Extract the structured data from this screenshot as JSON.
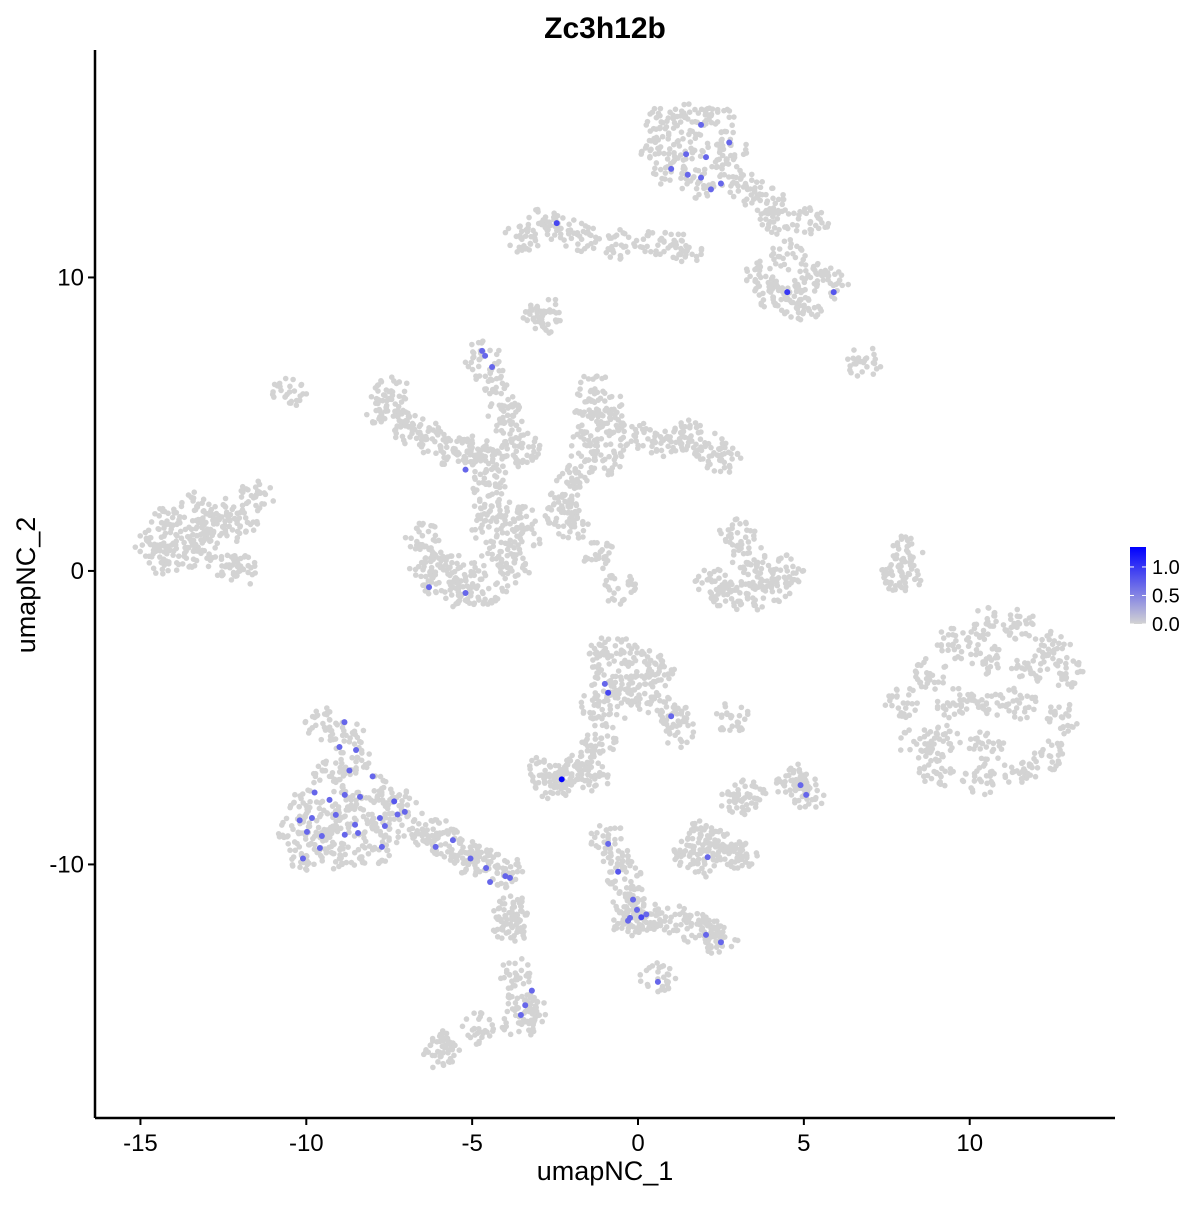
{
  "chart_data": {
    "type": "scatter",
    "title": "Zc3h12b",
    "xlabel": "umapNC_1",
    "ylabel": "umapNC_2",
    "xlim": [
      -16.37,
      14.38
    ],
    "ylim": [
      -18.64,
      17.75
    ],
    "xticks": [
      -15,
      -10,
      -5,
      0,
      5,
      10
    ],
    "yticks": [
      -10,
      0,
      10
    ],
    "grid": false,
    "legend": {
      "position": "right",
      "type": "colorbar",
      "ticks": [
        0.0,
        0.5,
        1.0
      ],
      "tick_labels": [
        "0.0",
        "0.5",
        "1.0"
      ],
      "range": [
        0,
        1.35
      ]
    },
    "colors": {
      "low": "#d3d3d3",
      "high": "#0000ff"
    },
    "unexpressed_cells_value": 0,
    "unexpressed_cells": [
      [
        -14.7,
        0.9
      ],
      [
        -14.2,
        1.7
      ],
      [
        -13.3,
        2.2
      ],
      [
        -12.4,
        2.0
      ],
      [
        -12.0,
        1.5
      ],
      [
        -11.5,
        2.6
      ],
      [
        -14.3,
        0.4
      ],
      [
        -13.4,
        0.4
      ],
      [
        -12.4,
        0.2
      ],
      [
        -12.0,
        0
      ],
      [
        -13.3,
        1.2
      ],
      [
        -13.9,
        1.2
      ],
      [
        -12.8,
        1.3
      ],
      [
        -7.8,
        5.5
      ],
      [
        -7.4,
        6.1
      ],
      [
        -7.0,
        5.0
      ],
      [
        -6.2,
        4.5
      ],
      [
        -5.5,
        4.0
      ],
      [
        -4.7,
        3.8
      ],
      [
        -4.0,
        3.9
      ],
      [
        -3.5,
        4.2
      ],
      [
        -6.8,
        4.8
      ],
      [
        -5.0,
        4.2
      ],
      [
        -4.7,
        7.3
      ],
      [
        -4.4,
        6.5
      ],
      [
        -4.1,
        5.5
      ],
      [
        -3.8,
        4.8
      ],
      [
        -4.5,
        3
      ],
      [
        -4.4,
        2.2
      ],
      [
        -4.5,
        1.5
      ],
      [
        -6.5,
        1.2
      ],
      [
        -6.4,
        0.3
      ],
      [
        -6.0,
        -0.4
      ],
      [
        -5.3,
        -0.8
      ],
      [
        -4.5,
        -0.6
      ],
      [
        -3.8,
        0
      ],
      [
        -3.5,
        1.0
      ],
      [
        -3.6,
        1.8
      ],
      [
        -5.2,
        -0.2
      ],
      [
        -4.2,
        0.5
      ],
      [
        -5.8,
        0.2
      ],
      [
        -1.3,
        6.2
      ],
      [
        -1.4,
        5.2
      ],
      [
        -1.6,
        4.3
      ],
      [
        -1.0,
        3.8
      ],
      [
        -0.5,
        4.5
      ],
      [
        0.3,
        4.5
      ],
      [
        1.0,
        4.4
      ],
      [
        1.6,
        4.6
      ],
      [
        2.2,
        4.2
      ],
      [
        2.6,
        3.7
      ],
      [
        -0.8,
        5.5
      ],
      [
        -1.9,
        3.4
      ],
      [
        -2.2,
        2.6
      ],
      [
        -2.3,
        2.0
      ],
      [
        -2.0,
        1.5
      ],
      [
        -1.2,
        0.5
      ],
      [
        -0.6,
        -0.6
      ],
      [
        3.0,
        1.3
      ],
      [
        3.3,
        0.6
      ],
      [
        3.6,
        -0.2
      ],
      [
        4.2,
        -0.5
      ],
      [
        4.5,
        0
      ],
      [
        2.7,
        -0.8
      ],
      [
        3.3,
        -0.9
      ],
      [
        2.2,
        -0.3
      ],
      [
        7.9,
        0
      ],
      [
        8.1,
        0.7
      ],
      [
        8.0,
        -0.3
      ],
      [
        8.0,
        -4.5
      ],
      [
        8.8,
        -3.5
      ],
      [
        9.5,
        -2.5
      ],
      [
        10.5,
        -1.8
      ],
      [
        11.5,
        -1.8
      ],
      [
        12.5,
        -2.5
      ],
      [
        12.9,
        -3.5
      ],
      [
        12.8,
        -5
      ],
      [
        12.4,
        -6.3
      ],
      [
        11.5,
        -6.9
      ],
      [
        10.3,
        -7.1
      ],
      [
        9.0,
        -6.9
      ],
      [
        8.4,
        -5.9
      ],
      [
        10.5,
        -4.5
      ],
      [
        9.5,
        -4.5
      ],
      [
        11.5,
        -4.5
      ],
      [
        10.5,
        -3
      ],
      [
        10.5,
        -6
      ],
      [
        11.8,
        -3.3
      ],
      [
        9.2,
        -5.8
      ],
      [
        0.7,
        15.3
      ],
      [
        1.5,
        15.4
      ],
      [
        2.4,
        15.3
      ],
      [
        2.8,
        14.5
      ],
      [
        2.6,
        13.5
      ],
      [
        1.8,
        13.2
      ],
      [
        1.0,
        13.6
      ],
      [
        0.6,
        14.4
      ],
      [
        1.6,
        14.4
      ],
      [
        3.3,
        13.0
      ],
      [
        3.9,
        12.6
      ],
      [
        4.2,
        12.0
      ],
      [
        5.2,
        11.9
      ],
      [
        4.5,
        10.8
      ],
      [
        5.2,
        10.0
      ],
      [
        5.8,
        9.8
      ],
      [
        4.5,
        9.3
      ],
      [
        5.0,
        9.0
      ],
      [
        4.0,
        9.5
      ],
      [
        3.7,
        10.0
      ],
      [
        -2.9,
        11.8
      ],
      [
        -2.4,
        11.7
      ],
      [
        -1.7,
        11.3
      ],
      [
        -0.5,
        11.1
      ],
      [
        0.6,
        11.1
      ],
      [
        1.5,
        11.0
      ],
      [
        -3.5,
        11.3
      ],
      [
        -2.8,
        8.8
      ],
      [
        -3.0,
        8.5
      ],
      [
        6.8,
        7.1
      ],
      [
        -10.5,
        6.1
      ],
      [
        -9.5,
        -5.2
      ],
      [
        -8.8,
        -5.6
      ],
      [
        -8.5,
        -6.5
      ],
      [
        -9.3,
        -7.0
      ],
      [
        -10.0,
        -8.0
      ],
      [
        -10.4,
        -8.8
      ],
      [
        -10.0,
        -9.7
      ],
      [
        -9.0,
        -9.8
      ],
      [
        -8.0,
        -9.5
      ],
      [
        -7.5,
        -8.8
      ],
      [
        -7.2,
        -8.0
      ],
      [
        -7.8,
        -7.5
      ],
      [
        -8.5,
        -8.5
      ],
      [
        -9.2,
        -8.7
      ],
      [
        -8.8,
        -7.8
      ],
      [
        -9.5,
        -9.2
      ],
      [
        -6.5,
        -8.8
      ],
      [
        -5.8,
        -9.3
      ],
      [
        -5.2,
        -9.6
      ],
      [
        -4.5,
        -10.0
      ],
      [
        -3.9,
        -10.3
      ],
      [
        -6.0,
        -9.0
      ],
      [
        -5.0,
        -9.9
      ],
      [
        -3.8,
        -11.8
      ],
      [
        -3.7,
        -13.7
      ],
      [
        -3.5,
        -14.5
      ],
      [
        -3.3,
        -15
      ],
      [
        -3.6,
        -15.4
      ],
      [
        -6,
        -16.4
      ],
      [
        -4.8,
        -15.6
      ],
      [
        -5.9,
        -16.2
      ],
      [
        -3.8,
        -11.6
      ],
      [
        -3.9,
        -12.3
      ],
      [
        -1.1,
        -2.8
      ],
      [
        -0.5,
        -2.7
      ],
      [
        0.2,
        -3.1
      ],
      [
        0.6,
        -3.5
      ],
      [
        -0.9,
        -3.8
      ],
      [
        -0.3,
        -4.0
      ],
      [
        0.4,
        -4.3
      ],
      [
        1.0,
        -4.9
      ],
      [
        1.2,
        -5.5
      ],
      [
        -1.2,
        -4.6
      ],
      [
        -0.5,
        -4.5
      ],
      [
        -2.8,
        -6.8
      ],
      [
        -2.3,
        -6.9
      ],
      [
        -2.0,
        -7.0
      ],
      [
        -2.6,
        -7.3
      ],
      [
        -1.7,
        -6.3
      ],
      [
        -1.1,
        -5.7
      ],
      [
        -1.4,
        -7.0
      ],
      [
        -0.9,
        -9.1
      ],
      [
        -0.6,
        -9.8
      ],
      [
        -0.4,
        -10.5
      ],
      [
        -0.2,
        -11.3
      ],
      [
        0,
        -11.8
      ],
      [
        -0.3,
        -12.0
      ],
      [
        0.3,
        -11.7
      ],
      [
        1.0,
        -11.8
      ],
      [
        1.6,
        -12.1
      ],
      [
        2.1,
        -12.4
      ],
      [
        2.5,
        -12.6
      ],
      [
        0.6,
        -13.9
      ],
      [
        1.6,
        -9.6
      ],
      [
        2.2,
        -9.3
      ],
      [
        2.8,
        -9.5
      ],
      [
        3.1,
        -9.7
      ],
      [
        2.0,
        -9.9
      ],
      [
        1.9,
        -9.0
      ],
      [
        4.9,
        -7.1
      ],
      [
        5.1,
        -7.6
      ],
      [
        4.7,
        -7.3
      ],
      [
        3.3,
        -7.6
      ],
      [
        3.0,
        -7.8
      ],
      [
        2.8,
        -5.0
      ]
    ],
    "expressed_cells": [
      {
        "x": 1.9,
        "y": 15.2,
        "v": 0.7
      },
      {
        "x": 1.45,
        "y": 14.2,
        "v": 0.7
      },
      {
        "x": 2.05,
        "y": 14.1,
        "v": 0.7
      },
      {
        "x": 2.75,
        "y": 14.6,
        "v": 0.7
      },
      {
        "x": 1.0,
        "y": 13.7,
        "v": 0.7
      },
      {
        "x": 1.5,
        "y": 13.5,
        "v": 0.7
      },
      {
        "x": 1.9,
        "y": 13.4,
        "v": 0.7
      },
      {
        "x": 2.2,
        "y": 13.0,
        "v": 0.7
      },
      {
        "x": 2.5,
        "y": 13.2,
        "v": 0.7
      },
      {
        "x": -2.45,
        "y": 11.85,
        "v": 0.9
      },
      {
        "x": 4.5,
        "y": 9.5,
        "v": 1.0
      },
      {
        "x": 5.9,
        "y": 9.5,
        "v": 0.8
      },
      {
        "x": -4.7,
        "y": 7.5,
        "v": 0.7
      },
      {
        "x": -4.61,
        "y": 7.33,
        "v": 0.7
      },
      {
        "x": -4.4,
        "y": 6.95,
        "v": 0.7
      },
      {
        "x": -5.2,
        "y": 3.45,
        "v": 0.7
      },
      {
        "x": -6.3,
        "y": -0.55,
        "v": 0.7
      },
      {
        "x": -5.2,
        "y": -0.75,
        "v": 0.7
      },
      {
        "x": -1.0,
        "y": -3.85,
        "v": 0.7
      },
      {
        "x": -0.9,
        "y": -4.15,
        "v": 0.9
      },
      {
        "x": 1.0,
        "y": -4.95,
        "v": 0.7
      },
      {
        "x": -8.85,
        "y": -5.15,
        "v": 0.7
      },
      {
        "x": -9.0,
        "y": -6.0,
        "v": 0.7
      },
      {
        "x": -8.5,
        "y": -6.1,
        "v": 0.7
      },
      {
        "x": -8.7,
        "y": -6.8,
        "v": 0.7
      },
      {
        "x": -8.0,
        "y": -7.0,
        "v": 0.7
      },
      {
        "x": -9.75,
        "y": -7.55,
        "v": 0.7
      },
      {
        "x": -9.3,
        "y": -7.8,
        "v": 0.7
      },
      {
        "x": -8.84,
        "y": -7.63,
        "v": 0.7
      },
      {
        "x": -8.38,
        "y": -7.7,
        "v": 0.7
      },
      {
        "x": -7.35,
        "y": -7.85,
        "v": 0.8
      },
      {
        "x": -10.2,
        "y": -8.5,
        "v": 0.7
      },
      {
        "x": -9.83,
        "y": -8.42,
        "v": 0.7
      },
      {
        "x": -9.11,
        "y": -8.31,
        "v": 0.7
      },
      {
        "x": -8.53,
        "y": -8.65,
        "v": 0.7
      },
      {
        "x": -7.78,
        "y": -8.42,
        "v": 0.7
      },
      {
        "x": -9.98,
        "y": -8.89,
        "v": 0.7
      },
      {
        "x": -9.53,
        "y": -9.03,
        "v": 0.7
      },
      {
        "x": -8.84,
        "y": -8.99,
        "v": 0.7
      },
      {
        "x": -8.44,
        "y": -8.93,
        "v": 0.7
      },
      {
        "x": -7.63,
        "y": -8.69,
        "v": 0.7
      },
      {
        "x": -7.25,
        "y": -8.3,
        "v": 0.7
      },
      {
        "x": -7.03,
        "y": -8.21,
        "v": 0.7
      },
      {
        "x": -10.1,
        "y": -9.8,
        "v": 0.7
      },
      {
        "x": -9.59,
        "y": -9.44,
        "v": 0.7
      },
      {
        "x": -7.72,
        "y": -9.4,
        "v": 0.7
      },
      {
        "x": -6.1,
        "y": -9.4,
        "v": 0.7
      },
      {
        "x": -5.58,
        "y": -9.17,
        "v": 0.7
      },
      {
        "x": -5.05,
        "y": -9.8,
        "v": 0.7
      },
      {
        "x": -4.58,
        "y": -10.12,
        "v": 0.7
      },
      {
        "x": -4.0,
        "y": -10.4,
        "v": 0.7
      },
      {
        "x": -3.86,
        "y": -10.46,
        "v": 0.7
      },
      {
        "x": -4.46,
        "y": -10.6,
        "v": 0.7
      },
      {
        "x": -3.2,
        "y": -14.3,
        "v": 0.7
      },
      {
        "x": -3.4,
        "y": -14.8,
        "v": 0.7
      },
      {
        "x": -3.53,
        "y": -15.13,
        "v": 0.7
      },
      {
        "x": -2.3,
        "y": -7.1,
        "v": 1.35
      },
      {
        "x": -0.9,
        "y": -9.3,
        "v": 0.7
      },
      {
        "x": -0.6,
        "y": -10.25,
        "v": 0.8
      },
      {
        "x": -0.15,
        "y": -11.2,
        "v": 0.7
      },
      {
        "x": -0.03,
        "y": -11.55,
        "v": 0.7
      },
      {
        "x": -0.24,
        "y": -11.82,
        "v": 0.7
      },
      {
        "x": 0.1,
        "y": -11.8,
        "v": 0.9
      },
      {
        "x": 0.25,
        "y": -11.7,
        "v": 0.7
      },
      {
        "x": -0.3,
        "y": -11.92,
        "v": 0.7
      },
      {
        "x": 2.1,
        "y": -9.75,
        "v": 0.7
      },
      {
        "x": 2.05,
        "y": -12.4,
        "v": 0.7
      },
      {
        "x": 2.5,
        "y": -12.65,
        "v": 0.7
      },
      {
        "x": 0.6,
        "y": -14.0,
        "v": 0.7
      },
      {
        "x": 4.9,
        "y": -7.3,
        "v": 0.7
      },
      {
        "x": 5.07,
        "y": -7.63,
        "v": 0.7
      }
    ]
  }
}
